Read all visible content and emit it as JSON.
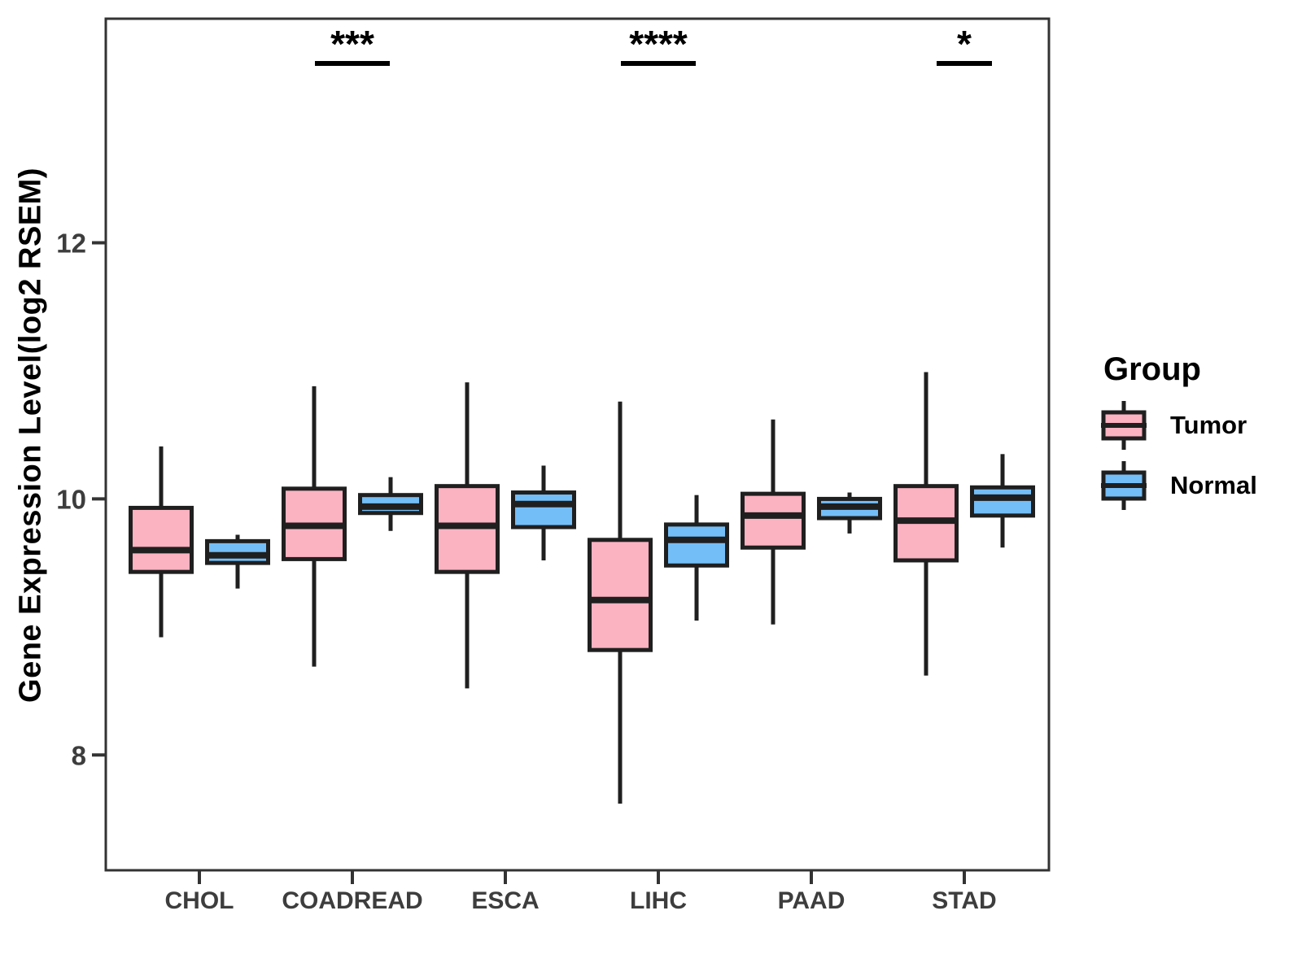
{
  "chart_data": {
    "type": "boxplot",
    "title": "",
    "xlabel": "",
    "ylabel": "Gene Expression Level(log2 RSEM)",
    "categories": [
      "CHOL",
      "COADREAD",
      "ESCA",
      "LIHC",
      "PAAD",
      "STAD"
    ],
    "ylim": [
      7.1,
      13.75
    ],
    "yticks": [
      8,
      10,
      12
    ],
    "grid": false,
    "panel_border": true,
    "series": [
      {
        "name": "Tumor",
        "fill": "#FBB2C1",
        "boxes": [
          {
            "category": "CHOL",
            "low": 8.92,
            "q1": 9.43,
            "median": 9.6,
            "q3": 9.93,
            "high": 10.41
          },
          {
            "category": "COADREAD",
            "low": 8.69,
            "q1": 9.53,
            "median": 9.79,
            "q3": 10.08,
            "high": 10.88
          },
          {
            "category": "ESCA",
            "low": 8.52,
            "q1": 9.43,
            "median": 9.79,
            "q3": 10.1,
            "high": 10.91
          },
          {
            "category": "LIHC",
            "low": 7.62,
            "q1": 8.82,
            "median": 9.21,
            "q3": 9.68,
            "high": 10.76
          },
          {
            "category": "PAAD",
            "low": 9.02,
            "q1": 9.62,
            "median": 9.87,
            "q3": 10.04,
            "high": 10.62
          },
          {
            "category": "STAD",
            "low": 8.62,
            "q1": 9.52,
            "median": 9.83,
            "q3": 10.1,
            "high": 10.99
          }
        ]
      },
      {
        "name": "Normal",
        "fill": "#74BEF7",
        "boxes": [
          {
            "category": "CHOL",
            "low": 9.3,
            "q1": 9.5,
            "median": 9.56,
            "q3": 9.67,
            "high": 9.72
          },
          {
            "category": "COADREAD",
            "low": 9.75,
            "q1": 9.89,
            "median": 9.94,
            "q3": 10.03,
            "high": 10.17
          },
          {
            "category": "ESCA",
            "low": 9.52,
            "q1": 9.78,
            "median": 9.96,
            "q3": 10.05,
            "high": 10.26
          },
          {
            "category": "LIHC",
            "low": 9.05,
            "q1": 9.48,
            "median": 9.68,
            "q3": 9.8,
            "high": 10.03
          },
          {
            "category": "PAAD",
            "low": 9.73,
            "q1": 9.85,
            "median": 9.94,
            "q3": 10.0,
            "high": 10.05
          },
          {
            "category": "STAD",
            "low": 9.62,
            "q1": 9.87,
            "median": 10.01,
            "q3": 10.09,
            "high": 10.35
          }
        ]
      }
    ],
    "significance": [
      {
        "category": "COADREAD",
        "label": "***"
      },
      {
        "category": "LIHC",
        "label": "****"
      },
      {
        "category": "STAD",
        "label": "*"
      }
    ],
    "legend": {
      "title": "Group",
      "position": "right",
      "entries": [
        {
          "label": "Tumor",
          "color": "#FBB2C1"
        },
        {
          "label": "Normal",
          "color": "#74BEF7"
        }
      ]
    },
    "colors": {
      "box_stroke": "#1F1F1F",
      "panel_border": "#333333",
      "tick_text": "#3D3D3D",
      "axis_title_text": "#000000"
    }
  }
}
